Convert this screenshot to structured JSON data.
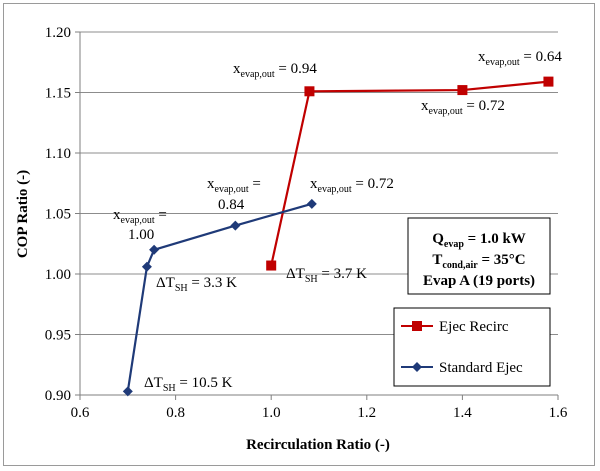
{
  "chart_data": {
    "type": "line",
    "title": "",
    "xlabel": "Recirculation Ratio (-)",
    "ylabel": "COP Ratio (-)",
    "xlim": [
      0.6,
      1.6
    ],
    "ylim": [
      0.9,
      1.2
    ],
    "xticks": [
      "0.6",
      "0.8",
      "1.0",
      "1.2",
      "1.4",
      "1.6"
    ],
    "yticks": [
      "0.90",
      "0.95",
      "1.00",
      "1.05",
      "1.10",
      "1.15",
      "1.20"
    ],
    "grid": "horizontal",
    "series": [
      {
        "name": "Ejec Recirc",
        "color": "#c00000",
        "marker": "square",
        "points": [
          {
            "x": 1.0,
            "y": 1.007
          },
          {
            "x": 1.08,
            "y": 1.151
          },
          {
            "x": 1.4,
            "y": 1.152
          },
          {
            "x": 1.58,
            "y": 1.159
          }
        ]
      },
      {
        "name": "Standard Ejec",
        "color": "#1f3a78",
        "marker": "diamond",
        "points": [
          {
            "x": 0.7,
            "y": 0.903
          },
          {
            "x": 0.74,
            "y": 1.006
          },
          {
            "x": 0.755,
            "y": 1.02
          },
          {
            "x": 0.925,
            "y": 1.04
          },
          {
            "x": 1.085,
            "y": 1.058
          }
        ]
      }
    ],
    "annotations": [
      {
        "id": "a1",
        "main": "x",
        "sub": "evap,out",
        "rest": " = 0.94"
      },
      {
        "id": "a2",
        "main": "x",
        "sub": "evap,out",
        "rest": " = 0.64"
      },
      {
        "id": "a3",
        "main": "x",
        "sub": "evap,out",
        "rest": " = 0.72"
      },
      {
        "id": "a4",
        "main": "x",
        "sub": "evap,out",
        "rest": " ="
      },
      {
        "id": "a4b",
        "main": "",
        "sub": "",
        "rest": "0.84"
      },
      {
        "id": "a5",
        "main": "x",
        "sub": "evap,out",
        "rest": " = 0.72"
      },
      {
        "id": "a6",
        "main": "x",
        "sub": "evap,out",
        "rest": " ="
      },
      {
        "id": "a6b",
        "main": "",
        "sub": "",
        "rest": "1.00"
      },
      {
        "id": "a7",
        "main": "ΔT",
        "sub": "SH",
        "rest": " = 3.3 K"
      },
      {
        "id": "a8",
        "main": "ΔT",
        "sub": "SH",
        "rest": " = 3.7 K"
      },
      {
        "id": "a9",
        "main": "ΔT",
        "sub": "SH",
        "rest": " = 10.5 K"
      }
    ],
    "info_box": [
      {
        "main": "Q",
        "sub": "evap",
        "rest": " = 1.0 kW"
      },
      {
        "main": "T",
        "sub": "cond,air",
        "rest": " = 35°C"
      },
      {
        "main": "Evap A (19 ports)",
        "sub": "",
        "rest": ""
      }
    ],
    "legend": [
      "Ejec Recirc",
      "Standard Ejec"
    ]
  }
}
